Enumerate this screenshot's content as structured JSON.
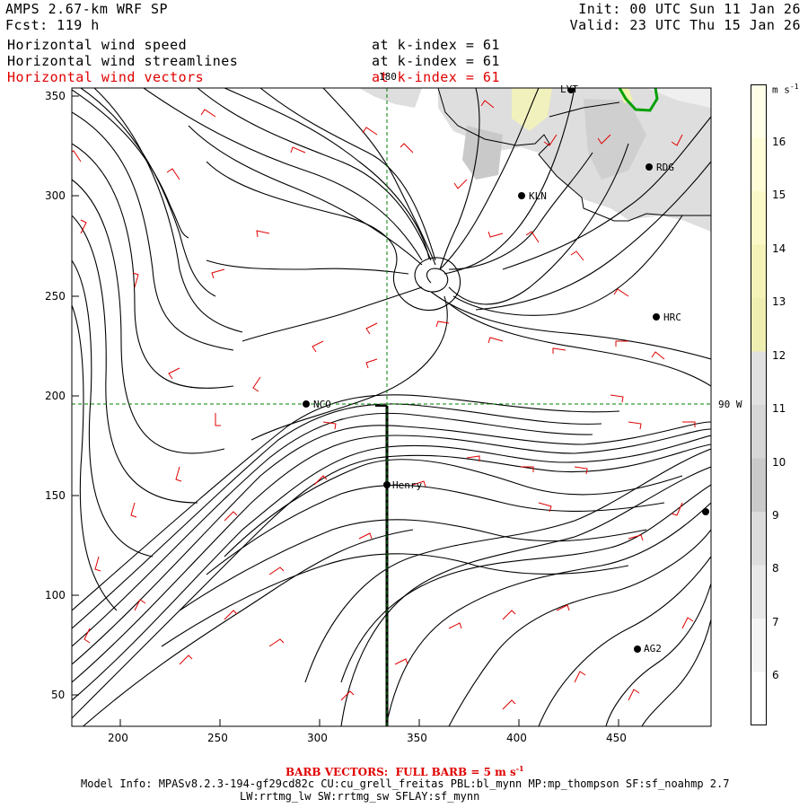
{
  "header": {
    "title": "AMPS 2.67-km WRF SP",
    "forecast": "Fcst: 119 h",
    "init": "Init: 00 UTC Sun 11 Jan 26",
    "valid": "Valid: 23 UTC Thu 15 Jan 26",
    "fields": [
      {
        "name": "Horizontal wind speed",
        "level": "at k-index = 61",
        "color": "#000000"
      },
      {
        "name": "Horizontal wind streamlines",
        "level": "at k-index = 61",
        "color": "#000000"
      },
      {
        "name": "Horizontal wind vectors",
        "level": "at k-index = 61",
        "color": "#e00000"
      }
    ]
  },
  "map": {
    "x_ticks": [
      "200",
      "250",
      "300",
      "350",
      "400",
      "450"
    ],
    "y_ticks": [
      "350",
      "300",
      "250",
      "200",
      "150",
      "100",
      "50"
    ],
    "meridian_label": "180",
    "parallel_label": "90 W",
    "stations": [
      {
        "code": "LYT"
      },
      {
        "code": "RDG"
      },
      {
        "code": "KLN"
      },
      {
        "code": "HRC"
      },
      {
        "code": "NCO"
      },
      {
        "code": "Henry"
      },
      {
        "code": "AG2"
      },
      {
        "code": ""
      }
    ],
    "colors": {
      "streamline": "#000000",
      "barb": "#e00000",
      "terrain": "#d8d8d8",
      "coast_green": "#00a000",
      "graticule": "#008000"
    }
  },
  "colorbar": {
    "unit": "m s",
    "unit_exp": "-1",
    "labels": [
      "16",
      "15",
      "14",
      "13",
      "12",
      "11",
      "10",
      "9",
      "8",
      "7",
      "6"
    ],
    "colors": [
      "#ffffe8",
      "#fffcd8",
      "#fbf8c8",
      "#f5f2b8",
      "#eeeeb0",
      "#e0e0e0",
      "#d6d6d6",
      "#cacaca",
      "#dcdcdc",
      "#e8e8e8",
      "#f4f4f4",
      "#ffffff"
    ]
  },
  "footer": {
    "barb_note_prefix": "BARB VECTORS:  FULL BARB = 5 m s",
    "barb_note_exp": "-1",
    "model_info": "Model Info: MPASv8.2.3-194-gf29cd82c CU:cu_grell_freitas PBL:bl_mynn MP:mp_thompson SF:sf_noahmp 2.7",
    "physics": "LW:rrtmg_lw SW:rrtmg_sw SFLAY:sf_mynn"
  }
}
